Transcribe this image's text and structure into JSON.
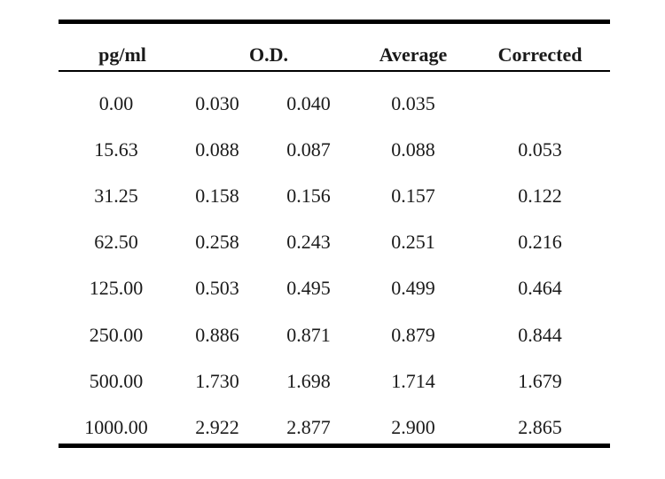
{
  "table": {
    "headers": {
      "conc": "pg/ml",
      "od": "O.D.",
      "average": "Average",
      "corrected": "Corrected"
    },
    "rows": [
      {
        "conc": "0.00",
        "od1": "0.030",
        "od2": "0.040",
        "average": "0.035",
        "corrected": ""
      },
      {
        "conc": "15.63",
        "od1": "0.088",
        "od2": "0.087",
        "average": "0.088",
        "corrected": "0.053"
      },
      {
        "conc": "31.25",
        "od1": "0.158",
        "od2": "0.156",
        "average": "0.157",
        "corrected": "0.122"
      },
      {
        "conc": "62.50",
        "od1": "0.258",
        "od2": "0.243",
        "average": "0.251",
        "corrected": "0.216"
      },
      {
        "conc": "125.00",
        "od1": "0.503",
        "od2": "0.495",
        "average": "0.499",
        "corrected": "0.464"
      },
      {
        "conc": "250.00",
        "od1": "0.886",
        "od2": "0.871",
        "average": "0.879",
        "corrected": "0.844"
      },
      {
        "conc": "500.00",
        "od1": "1.730",
        "od2": "1.698",
        "average": "1.714",
        "corrected": "1.679"
      },
      {
        "conc": "1000.00",
        "od1": "2.922",
        "od2": "2.877",
        "average": "2.900",
        "corrected": "2.865"
      }
    ]
  }
}
